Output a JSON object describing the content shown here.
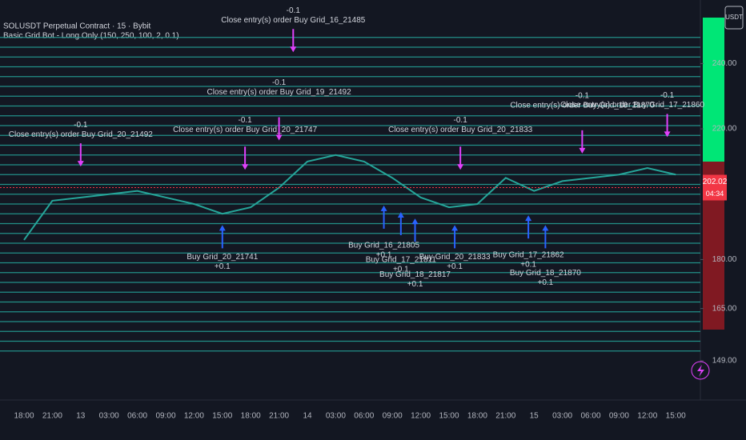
{
  "chart_data": {
    "type": "line",
    "title": "SOLUSDT Perpetual Contract · 15 · Bybit",
    "indicator": "Basic Grid Bot - Long Only (150, 250, 100, 2, 0.1)",
    "currency_button": "USDT",
    "categories": [
      "18:00",
      "21:00",
      "13",
      "03:00",
      "06:00",
      "09:00",
      "12:00",
      "15:00",
      "18:00",
      "21:00",
      "14",
      "03:00",
      "06:00",
      "09:00",
      "12:00",
      "15:00",
      "18:00",
      "21:00",
      "15",
      "03:00",
      "06:00",
      "09:00",
      "12:00",
      "15:00"
    ],
    "series": [
      {
        "name": "SOLUSDT",
        "color": "#26a69a",
        "values": [
          186,
          198,
          199,
          200,
          201,
          199,
          197,
          194,
          196,
          202,
          210,
          212,
          210,
          205,
          199,
          196,
          197,
          205,
          201,
          204,
          205,
          206,
          208,
          206
        ]
      }
    ],
    "ylim": [
      137,
      257
    ],
    "yticks": [
      {
        "value": 240,
        "label": "240.00"
      },
      {
        "value": 220,
        "label": "220.00"
      },
      {
        "value": 180,
        "label": "180.00"
      },
      {
        "value": 165,
        "label": "165.00"
      },
      {
        "value": 149,
        "label": "149.00"
      }
    ],
    "current_price": {
      "value": 202.02,
      "label": "202.02"
    },
    "countdown": "04:34",
    "grid_levels": [
      152,
      155,
      158,
      161,
      164,
      167,
      170,
      173,
      176,
      179,
      182,
      185,
      188,
      191,
      194,
      197,
      200,
      203,
      206,
      209,
      212,
      215,
      218,
      221,
      224,
      227,
      230,
      233,
      236,
      239,
      242,
      245,
      248
    ],
    "grid_color": "#26a69a",
    "buy_signals": [
      {
        "bar": 7,
        "price": 193,
        "label": "Buy Grid_20_21741",
        "qty": "+0.1"
      },
      {
        "bar": 12.7,
        "price": 199,
        "label": "Buy Grid_16_21805",
        "qty": "+0.1"
      },
      {
        "bar": 13.3,
        "price": 197,
        "label": "Buy Grid_17_21811",
        "qty": "+0.1"
      },
      {
        "bar": 13.8,
        "price": 195,
        "label": "Buy Grid_18_21817",
        "qty": "+0.1"
      },
      {
        "bar": 15.2,
        "price": 193,
        "label": "Buy Grid_20_21833",
        "qty": "+0.1"
      },
      {
        "bar": 17.8,
        "price": 196,
        "label": "Buy Grid_17_21862",
        "qty": "+0.1"
      },
      {
        "bar": 18.4,
        "price": 193,
        "label": "Buy Grid_18_21870",
        "qty": "+0.1"
      }
    ],
    "close_signals": [
      {
        "bar": 2,
        "price": 207,
        "label": "Close entry(s) order Buy Grid_20_21492",
        "qty": "-0.1"
      },
      {
        "bar": 7.8,
        "price": 206,
        "label": "Close entry(s) order Buy Grid_20_21747",
        "qty": "-0.1"
      },
      {
        "bar": 9,
        "price": 215,
        "label": "Close entry(s) order Buy Grid_19_21492",
        "qty": "-0.1"
      },
      {
        "bar": 9.5,
        "price": 242,
        "label": "Close entry(s) order Buy Grid_16_21485",
        "qty": "-0.1"
      },
      {
        "bar": 15.4,
        "price": 206,
        "label": "Close entry(s) order Buy Grid_20_21833",
        "qty": "-0.1"
      },
      {
        "bar": 19.7,
        "price": 211,
        "label": "Close entry(s) order Buy Grid_18_21870",
        "qty": "-0.1"
      },
      {
        "bar": 22.7,
        "price": 216,
        "label": "Close entry(s) order Buy Grid_17_21860",
        "qty": "-0.1"
      }
    ]
  }
}
